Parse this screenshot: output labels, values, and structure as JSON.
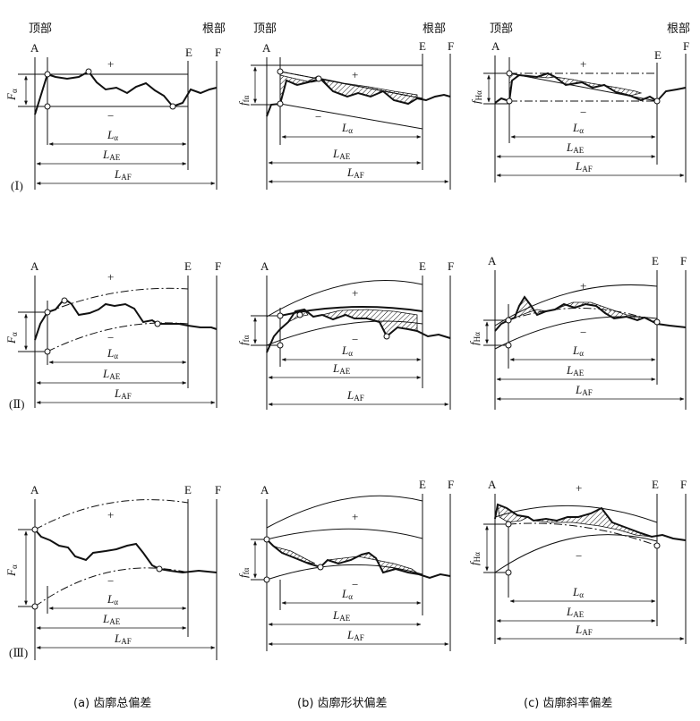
{
  "labels": {
    "top": "顶部",
    "root": "根部",
    "A": "A",
    "E": "E",
    "F": "F",
    "plus": "+",
    "minus": "−",
    "L": "L",
    "alpha": "α",
    "AE": "AE",
    "AF": "AF"
  },
  "measures": {
    "a": {
      "main": "F",
      "sub": "α"
    },
    "b": {
      "main": "f",
      "sub": "fα"
    },
    "c": {
      "main": "f",
      "sub": "Hα"
    }
  },
  "rows": [
    "(Ⅰ)",
    "(Ⅱ)",
    "(Ⅲ)"
  ],
  "captions": [
    "(a) 齿廓总偏差",
    "(b) 齿廓形状偏差",
    "(c) 齿廓斜率偏差"
  ]
}
